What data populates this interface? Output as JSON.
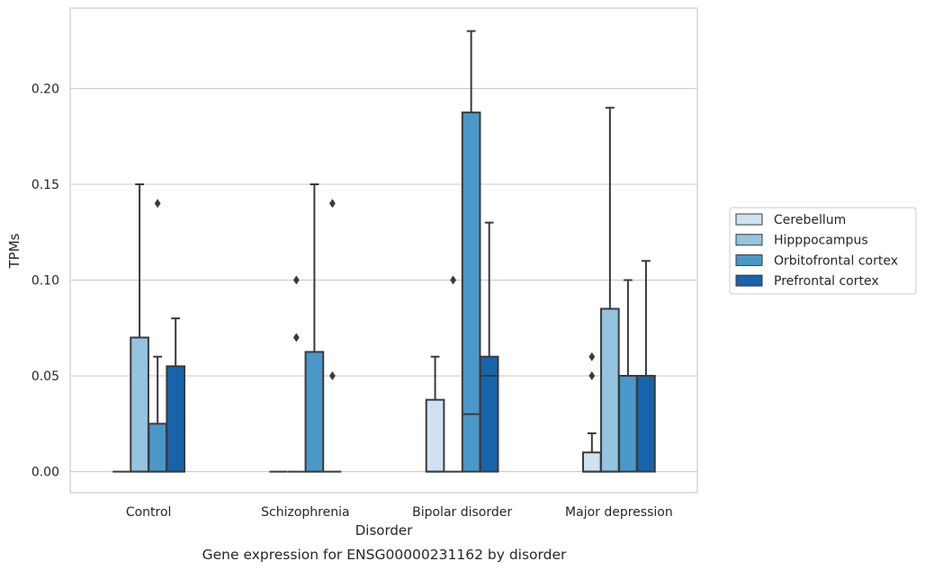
{
  "chart_data": {
    "type": "boxplot",
    "caption": "Gene expression for ENSG00000231162 by disorder",
    "xlabel": "Disorder",
    "ylabel": "TPMs",
    "ylim": [
      -0.011,
      0.242
    ],
    "yticks": [
      0.0,
      0.05,
      0.1,
      0.15,
      0.2
    ],
    "ytick_labels": [
      "0.00",
      "0.05",
      "0.10",
      "0.15",
      "0.20"
    ],
    "grid": "horizontal",
    "categories": [
      "Control",
      "Schizophrenia",
      "Bipolar disorder",
      "Major depression"
    ],
    "legend": {
      "placement": "right"
    },
    "series": [
      {
        "name": "Cerebellum",
        "color": "#d0e1f2",
        "boxes": [
          {
            "q1": 0,
            "median": 0,
            "q3": 0,
            "whisker_low": 0,
            "whisker_high": 0,
            "outliers": []
          },
          {
            "q1": 0,
            "median": 0,
            "q3": 0,
            "whisker_low": 0,
            "whisker_high": 0,
            "outliers": []
          },
          {
            "q1": 0,
            "median": 0,
            "q3": 0.0375,
            "whisker_low": 0,
            "whisker_high": 0.06,
            "outliers": []
          },
          {
            "q1": 0,
            "median": 0,
            "q3": 0.01,
            "whisker_low": 0,
            "whisker_high": 0.02,
            "outliers": [
              0.05,
              0.06
            ]
          }
        ]
      },
      {
        "name": "Hipppocampus",
        "color": "#94c4df",
        "boxes": [
          {
            "q1": 0,
            "median": 0,
            "q3": 0.07,
            "whisker_low": 0,
            "whisker_high": 0.15,
            "outliers": []
          },
          {
            "q1": 0,
            "median": 0,
            "q3": 0,
            "whisker_low": 0,
            "whisker_high": 0,
            "outliers": [
              0.07,
              0.1
            ]
          },
          {
            "q1": 0,
            "median": 0,
            "q3": 0,
            "whisker_low": 0,
            "whisker_high": 0,
            "outliers": [
              0.1
            ]
          },
          {
            "q1": 0,
            "median": 0,
            "q3": 0.085,
            "whisker_low": 0,
            "whisker_high": 0.19,
            "outliers": []
          }
        ]
      },
      {
        "name": "Orbitofrontal cortex",
        "color": "#4a98c9",
        "boxes": [
          {
            "q1": 0,
            "median": 0,
            "q3": 0.025,
            "whisker_low": 0,
            "whisker_high": 0.06,
            "outliers": [
              0.14
            ]
          },
          {
            "q1": 0,
            "median": 0,
            "q3": 0.0625,
            "whisker_low": 0,
            "whisker_high": 0.15,
            "outliers": []
          },
          {
            "q1": 0,
            "median": 0.03,
            "q3": 0.1875,
            "whisker_low": 0,
            "whisker_high": 0.23,
            "outliers": []
          },
          {
            "q1": 0,
            "median": 0.05,
            "q3": 0.05,
            "whisker_low": 0,
            "whisker_high": 0.1,
            "outliers": []
          }
        ]
      },
      {
        "name": "Prefrontal cortex",
        "color": "#1764ab",
        "boxes": [
          {
            "q1": 0,
            "median": 0,
            "q3": 0.055,
            "whisker_low": 0,
            "whisker_high": 0.08,
            "outliers": []
          },
          {
            "q1": 0,
            "median": 0,
            "q3": 0,
            "whisker_low": 0,
            "whisker_high": 0,
            "outliers": [
              0.05,
              0.14
            ]
          },
          {
            "q1": 0,
            "median": 0.05,
            "q3": 0.06,
            "whisker_low": 0,
            "whisker_high": 0.13,
            "outliers": []
          },
          {
            "q1": 0,
            "median": 0.05,
            "q3": 0.05,
            "whisker_low": 0,
            "whisker_high": 0.11,
            "outliers": []
          }
        ]
      }
    ]
  }
}
